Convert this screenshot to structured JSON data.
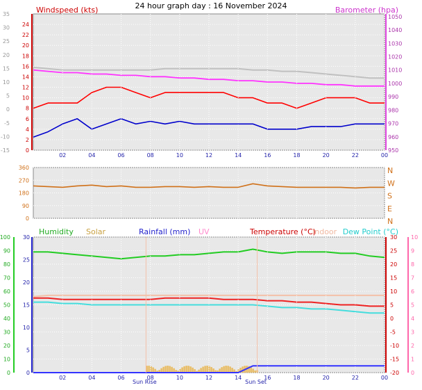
{
  "page_title": "24 hour graph day : 16 November 2024",
  "colors": {
    "wind_gust": "#ff0000",
    "wind_avg": "#0000cc",
    "barometer": "#ff33ff",
    "wind_dir": "#d07018",
    "humidity": "#22cc22",
    "solar": "#e8b040",
    "rainfall": "#3333ff",
    "uv": "#ff88aa",
    "temperature": "#ee2222",
    "indoor": "#f4c0a8",
    "dew_point": "#44dddd",
    "panel_bg": "#e8e8e8",
    "grid": "#ffffff"
  },
  "x_ticks": [
    "02",
    "04",
    "06",
    "08",
    "10",
    "12",
    "14",
    "16",
    "18",
    "20",
    "22",
    "00"
  ],
  "chart_data": [
    {
      "id": "wind",
      "type": "line",
      "labels": {
        "left": "Windspeed (kts)",
        "right": "Barometer (hpa)"
      },
      "y_left_outer": [
        -15,
        -10,
        -5,
        0,
        5,
        10,
        15,
        20,
        25,
        30,
        35
      ],
      "y_left": [
        0,
        2,
        4,
        6,
        8,
        10,
        12,
        14,
        16,
        18,
        20,
        22,
        24
      ],
      "y_right": [
        950,
        960,
        970,
        980,
        990,
        1000,
        1010,
        1020,
        1030,
        1040,
        1050
      ],
      "ylim_left": [
        0,
        26
      ],
      "ylim_right": [
        950,
        1052
      ],
      "x_hours": [
        0,
        1,
        2,
        3,
        4,
        5,
        6,
        7,
        8,
        9,
        10,
        11,
        12,
        13,
        14,
        15,
        16,
        17,
        18,
        19,
        20,
        21,
        22,
        23,
        24
      ],
      "series": [
        {
          "name": "Gust",
          "color_key": "wind_gust",
          "axis": "left",
          "values": [
            8,
            9,
            9,
            9,
            11,
            12,
            12,
            11,
            10,
            11,
            11,
            11,
            11,
            11,
            10,
            10,
            9,
            9,
            8,
            9,
            10,
            10,
            10,
            9,
            9
          ]
        },
        {
          "name": "Speed",
          "color_key": "wind_avg",
          "axis": "left",
          "values": [
            2.5,
            3.5,
            5,
            6,
            4,
            5,
            6,
            5,
            5.5,
            5,
            5.5,
            5,
            5,
            5,
            5,
            5,
            4,
            4,
            4,
            4.5,
            4.5,
            4.5,
            5,
            5,
            5
          ]
        },
        {
          "name": "Barometer",
          "color_key": "barometer",
          "axis": "right",
          "values": [
            1010,
            1009,
            1008,
            1008,
            1007,
            1007,
            1006,
            1006,
            1005,
            1005,
            1004,
            1004,
            1003,
            1003,
            1002,
            1002,
            1001,
            1001,
            1000,
            1000,
            999,
            999,
            998,
            998,
            998
          ]
        },
        {
          "name": "Barometer (prev)",
          "color_key": "grid",
          "axis": "right",
          "values": [
            1012,
            1011,
            1010,
            1010,
            1010,
            1010,
            1010,
            1010,
            1010,
            1011,
            1011,
            1011,
            1011,
            1011,
            1011,
            1010,
            1010,
            1009,
            1009,
            1008,
            1007,
            1006,
            1005,
            1004,
            1004
          ]
        }
      ]
    },
    {
      "id": "direction",
      "type": "line",
      "y_left": [
        0,
        90,
        180,
        270,
        360
      ],
      "y_right": [
        "N",
        "W",
        "S",
        "E",
        "N"
      ],
      "ylim_left": [
        0,
        360
      ],
      "x_hours": [
        0,
        1,
        2,
        3,
        4,
        5,
        6,
        7,
        8,
        9,
        10,
        11,
        12,
        13,
        14,
        15,
        16,
        17,
        18,
        19,
        20,
        21,
        22,
        23,
        24
      ],
      "series": [
        {
          "name": "Direction",
          "color_key": "wind_dir",
          "values": [
            230,
            225,
            220,
            230,
            235,
            225,
            230,
            220,
            220,
            225,
            225,
            220,
            225,
            220,
            220,
            245,
            230,
            225,
            220,
            220,
            220,
            220,
            215,
            220,
            220
          ]
        }
      ]
    },
    {
      "id": "temp",
      "type": "line",
      "labels": {
        "humidity": "Humidity",
        "solar": "Solar",
        "rainfall": "Rainfall (mm)",
        "uv": "UV",
        "temperature": "Temperature (°C)",
        "indoor": "Indoor",
        "dew_point": "Dew Point (°C)"
      },
      "y_left_hum": [
        0,
        10,
        20,
        30,
        40,
        50,
        60,
        70,
        80,
        90,
        100
      ],
      "y_left_rain": [
        0,
        5,
        10,
        15,
        20,
        25,
        30
      ],
      "y_right_uv": [
        0,
        1,
        2,
        3,
        4,
        5,
        6,
        7,
        8,
        9,
        10
      ],
      "y_right_temp": [
        -20,
        -15,
        -10,
        -5,
        0,
        5,
        10,
        15,
        20,
        25,
        30
      ],
      "ylim_temp": [
        -20,
        30
      ],
      "ylim_hum": [
        0,
        100
      ],
      "sun_labels": [
        "Sun Rise",
        "Sun Set"
      ],
      "x_hours": [
        0,
        1,
        2,
        3,
        4,
        5,
        6,
        7,
        8,
        9,
        10,
        11,
        12,
        13,
        14,
        15,
        16,
        17,
        18,
        19,
        20,
        21,
        22,
        23,
        24
      ],
      "series": [
        {
          "name": "Humidity",
          "color_key": "humidity",
          "axis": "hum",
          "values": [
            89,
            89,
            88,
            87,
            86,
            85,
            84,
            85,
            86,
            86,
            87,
            87,
            88,
            89,
            89,
            91,
            89,
            88,
            89,
            89,
            89,
            88,
            88,
            86,
            85
          ]
        },
        {
          "name": "Indoor",
          "color_key": "indoor",
          "axis": "temp",
          "values": [
            8,
            8.5,
            8.5,
            8.5,
            8.5,
            8.5,
            8.5,
            8.5,
            8.5,
            8.5,
            8.5,
            8.5,
            8.5,
            8.5,
            8.5,
            8.5,
            8.5,
            8.5,
            8.5,
            8.5,
            8.5,
            8.5,
            8.5,
            8.5,
            8.5
          ]
        },
        {
          "name": "Temperature",
          "color_key": "temperature",
          "axis": "temp",
          "values": [
            7.5,
            7.5,
            7,
            7,
            7,
            7,
            7,
            7,
            7,
            7.5,
            7.5,
            7.5,
            7.5,
            7,
            7,
            7,
            6.5,
            6.5,
            6,
            6,
            5.5,
            5,
            5,
            4.5,
            4.5
          ]
        },
        {
          "name": "Dew Point",
          "color_key": "dew_point",
          "axis": "temp",
          "values": [
            6,
            6,
            5.5,
            5.5,
            5,
            5,
            5,
            5,
            5,
            5,
            5,
            5,
            5,
            5,
            5,
            5,
            4.5,
            4,
            4,
            3.5,
            3.5,
            3,
            2.5,
            2,
            2
          ]
        },
        {
          "name": "Rainfall",
          "color_key": "rainfall",
          "axis": "rain",
          "values": [
            0,
            0,
            0,
            0,
            0,
            0,
            0,
            0,
            0,
            0,
            0,
            0,
            0,
            0,
            0,
            1.5,
            1.5,
            1.5,
            1.5,
            1.5,
            1.5,
            1.5,
            1.5,
            1.5,
            1.5
          ]
        }
      ]
    }
  ]
}
